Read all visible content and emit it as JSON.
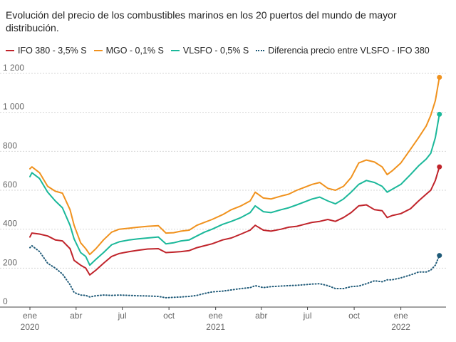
{
  "title": "Evolución del precio de los combustibles marinos en los 20 puertos del mundo de mayor distribución.",
  "chart_data": {
    "type": "line",
    "xlabel": "",
    "ylabel": "",
    "ylim": [
      0,
      1200
    ],
    "y_ticks": [
      0,
      200,
      400,
      600,
      800,
      1000,
      1200
    ],
    "y_tick_labels": [
      "0",
      "200",
      "400",
      "600",
      "800",
      "1 000",
      "1 200"
    ],
    "x_range": [
      "2020-01-01",
      "2022-03-31"
    ],
    "x_ticks": [
      {
        "date": "2020-01-01",
        "label": "ene",
        "year": "2020"
      },
      {
        "date": "2020-04-01",
        "label": "abr",
        "year": ""
      },
      {
        "date": "2020-07-01",
        "label": "jul",
        "year": ""
      },
      {
        "date": "2020-10-01",
        "label": "oct",
        "year": ""
      },
      {
        "date": "2021-01-01",
        "label": "ene",
        "year": "2021"
      },
      {
        "date": "2021-04-01",
        "label": "abr",
        "year": ""
      },
      {
        "date": "2021-07-01",
        "label": "jul",
        "year": ""
      },
      {
        "date": "2021-10-01",
        "label": "oct",
        "year": ""
      },
      {
        "date": "2022-01-01",
        "label": "ene",
        "year": "2022"
      }
    ],
    "grid": true,
    "legend_position": "top",
    "series": [
      {
        "name": "IFO 380 - 3,5% S",
        "color": "#c0242b",
        "style": "solid",
        "points": [
          [
            "2020-01-01",
            360
          ],
          [
            "2020-01-05",
            380
          ],
          [
            "2020-01-20",
            375
          ],
          [
            "2020-02-05",
            365
          ],
          [
            "2020-02-20",
            345
          ],
          [
            "2020-03-05",
            340
          ],
          [
            "2020-03-20",
            300
          ],
          [
            "2020-03-28",
            240
          ],
          [
            "2020-04-10",
            215
          ],
          [
            "2020-04-20",
            200
          ],
          [
            "2020-04-28",
            165
          ],
          [
            "2020-05-10",
            190
          ],
          [
            "2020-05-25",
            225
          ],
          [
            "2020-06-10",
            260
          ],
          [
            "2020-06-25",
            275
          ],
          [
            "2020-07-15",
            285
          ],
          [
            "2020-08-01",
            292
          ],
          [
            "2020-08-20",
            298
          ],
          [
            "2020-09-10",
            300
          ],
          [
            "2020-09-25",
            280
          ],
          [
            "2020-10-10",
            282
          ],
          [
            "2020-10-25",
            285
          ],
          [
            "2020-11-10",
            290
          ],
          [
            "2020-11-25",
            305
          ],
          [
            "2020-12-10",
            315
          ],
          [
            "2020-12-25",
            325
          ],
          [
            "2021-01-15",
            345
          ],
          [
            "2021-02-01",
            355
          ],
          [
            "2021-02-20",
            375
          ],
          [
            "2021-03-10",
            395
          ],
          [
            "2021-03-20",
            420
          ],
          [
            "2021-04-05",
            395
          ],
          [
            "2021-04-20",
            390
          ],
          [
            "2021-05-10",
            400
          ],
          [
            "2021-05-25",
            410
          ],
          [
            "2021-06-10",
            415
          ],
          [
            "2021-06-25",
            425
          ],
          [
            "2021-07-10",
            435
          ],
          [
            "2021-07-25",
            440
          ],
          [
            "2021-08-10",
            450
          ],
          [
            "2021-08-25",
            440
          ],
          [
            "2021-09-10",
            460
          ],
          [
            "2021-09-25",
            485
          ],
          [
            "2021-10-10",
            520
          ],
          [
            "2021-10-25",
            525
          ],
          [
            "2021-11-10",
            500
          ],
          [
            "2021-11-25",
            495
          ],
          [
            "2021-12-05",
            460
          ],
          [
            "2021-12-15",
            470
          ],
          [
            "2022-01-01",
            480
          ],
          [
            "2022-01-20",
            505
          ],
          [
            "2022-02-05",
            545
          ],
          [
            "2022-02-20",
            580
          ],
          [
            "2022-03-01",
            600
          ],
          [
            "2022-03-10",
            650
          ],
          [
            "2022-03-18",
            720
          ]
        ]
      },
      {
        "name": "MGO - 0,1% S",
        "color": "#f0921e",
        "style": "solid",
        "points": [
          [
            "2020-01-01",
            710
          ],
          [
            "2020-01-05",
            720
          ],
          [
            "2020-01-20",
            690
          ],
          [
            "2020-02-05",
            620
          ],
          [
            "2020-02-20",
            595
          ],
          [
            "2020-03-05",
            585
          ],
          [
            "2020-03-20",
            500
          ],
          [
            "2020-03-28",
            420
          ],
          [
            "2020-04-10",
            330
          ],
          [
            "2020-04-20",
            300
          ],
          [
            "2020-04-28",
            270
          ],
          [
            "2020-05-10",
            300
          ],
          [
            "2020-05-25",
            345
          ],
          [
            "2020-06-10",
            385
          ],
          [
            "2020-06-25",
            400
          ],
          [
            "2020-07-15",
            405
          ],
          [
            "2020-08-01",
            410
          ],
          [
            "2020-08-20",
            415
          ],
          [
            "2020-09-10",
            418
          ],
          [
            "2020-09-25",
            380
          ],
          [
            "2020-10-10",
            382
          ],
          [
            "2020-10-25",
            390
          ],
          [
            "2020-11-10",
            395
          ],
          [
            "2020-11-25",
            420
          ],
          [
            "2020-12-10",
            435
          ],
          [
            "2020-12-25",
            450
          ],
          [
            "2021-01-15",
            475
          ],
          [
            "2021-02-01",
            500
          ],
          [
            "2021-02-20",
            520
          ],
          [
            "2021-03-10",
            545
          ],
          [
            "2021-03-20",
            590
          ],
          [
            "2021-04-05",
            560
          ],
          [
            "2021-04-20",
            555
          ],
          [
            "2021-05-10",
            570
          ],
          [
            "2021-05-25",
            580
          ],
          [
            "2021-06-10",
            600
          ],
          [
            "2021-06-25",
            615
          ],
          [
            "2021-07-10",
            630
          ],
          [
            "2021-07-25",
            640
          ],
          [
            "2021-08-10",
            610
          ],
          [
            "2021-08-25",
            600
          ],
          [
            "2021-09-10",
            620
          ],
          [
            "2021-09-25",
            665
          ],
          [
            "2021-10-10",
            740
          ],
          [
            "2021-10-25",
            755
          ],
          [
            "2021-11-10",
            745
          ],
          [
            "2021-11-25",
            720
          ],
          [
            "2021-12-05",
            680
          ],
          [
            "2021-12-15",
            700
          ],
          [
            "2022-01-01",
            740
          ],
          [
            "2022-01-20",
            810
          ],
          [
            "2022-02-05",
            870
          ],
          [
            "2022-02-20",
            930
          ],
          [
            "2022-03-01",
            985
          ],
          [
            "2022-03-10",
            1060
          ],
          [
            "2022-03-18",
            1180
          ]
        ]
      },
      {
        "name": "VLSFO - 0,5% S",
        "color": "#1bb89a",
        "style": "solid",
        "points": [
          [
            "2020-01-01",
            670
          ],
          [
            "2020-01-05",
            690
          ],
          [
            "2020-01-20",
            660
          ],
          [
            "2020-02-05",
            590
          ],
          [
            "2020-02-20",
            545
          ],
          [
            "2020-03-05",
            510
          ],
          [
            "2020-03-20",
            420
          ],
          [
            "2020-03-28",
            350
          ],
          [
            "2020-04-10",
            280
          ],
          [
            "2020-04-20",
            260
          ],
          [
            "2020-04-28",
            215
          ],
          [
            "2020-05-10",
            245
          ],
          [
            "2020-05-25",
            280
          ],
          [
            "2020-06-10",
            320
          ],
          [
            "2020-06-25",
            335
          ],
          [
            "2020-07-15",
            345
          ],
          [
            "2020-08-01",
            350
          ],
          [
            "2020-08-20",
            355
          ],
          [
            "2020-09-10",
            360
          ],
          [
            "2020-09-25",
            325
          ],
          [
            "2020-10-10",
            330
          ],
          [
            "2020-10-25",
            340
          ],
          [
            "2020-11-10",
            345
          ],
          [
            "2020-11-25",
            365
          ],
          [
            "2020-12-10",
            385
          ],
          [
            "2020-12-25",
            400
          ],
          [
            "2021-01-15",
            425
          ],
          [
            "2021-02-01",
            440
          ],
          [
            "2021-02-20",
            460
          ],
          [
            "2021-03-10",
            485
          ],
          [
            "2021-03-20",
            520
          ],
          [
            "2021-04-05",
            490
          ],
          [
            "2021-04-20",
            485
          ],
          [
            "2021-05-10",
            500
          ],
          [
            "2021-05-25",
            510
          ],
          [
            "2021-06-10",
            525
          ],
          [
            "2021-06-25",
            540
          ],
          [
            "2021-07-10",
            555
          ],
          [
            "2021-07-25",
            565
          ],
          [
            "2021-08-10",
            545
          ],
          [
            "2021-08-25",
            530
          ],
          [
            "2021-09-10",
            555
          ],
          [
            "2021-09-25",
            590
          ],
          [
            "2021-10-10",
            630
          ],
          [
            "2021-10-25",
            650
          ],
          [
            "2021-11-10",
            640
          ],
          [
            "2021-11-25",
            620
          ],
          [
            "2021-12-05",
            590
          ],
          [
            "2021-12-15",
            605
          ],
          [
            "2022-01-01",
            630
          ],
          [
            "2022-01-20",
            680
          ],
          [
            "2022-02-05",
            725
          ],
          [
            "2022-02-20",
            760
          ],
          [
            "2022-03-01",
            790
          ],
          [
            "2022-03-10",
            870
          ],
          [
            "2022-03-18",
            990
          ]
        ]
      },
      {
        "name": "Diferencia precio entre VLSFO - IFO 380",
        "color": "#1f5a78",
        "style": "dotted",
        "points": [
          [
            "2020-01-01",
            305
          ],
          [
            "2020-01-05",
            315
          ],
          [
            "2020-01-20",
            285
          ],
          [
            "2020-02-05",
            225
          ],
          [
            "2020-02-20",
            200
          ],
          [
            "2020-03-05",
            170
          ],
          [
            "2020-03-20",
            115
          ],
          [
            "2020-03-28",
            75
          ],
          [
            "2020-04-10",
            62
          ],
          [
            "2020-04-20",
            60
          ],
          [
            "2020-04-28",
            52
          ],
          [
            "2020-05-10",
            58
          ],
          [
            "2020-05-25",
            62
          ],
          [
            "2020-06-10",
            60
          ],
          [
            "2020-06-25",
            62
          ],
          [
            "2020-07-15",
            60
          ],
          [
            "2020-08-01",
            58
          ],
          [
            "2020-08-20",
            57
          ],
          [
            "2020-09-10",
            55
          ],
          [
            "2020-09-25",
            48
          ],
          [
            "2020-10-10",
            50
          ],
          [
            "2020-10-25",
            52
          ],
          [
            "2020-11-10",
            55
          ],
          [
            "2020-11-25",
            60
          ],
          [
            "2020-12-10",
            70
          ],
          [
            "2020-12-25",
            78
          ],
          [
            "2021-01-15",
            82
          ],
          [
            "2021-02-01",
            88
          ],
          [
            "2021-02-20",
            95
          ],
          [
            "2021-03-10",
            100
          ],
          [
            "2021-03-20",
            110
          ],
          [
            "2021-04-05",
            100
          ],
          [
            "2021-04-20",
            105
          ],
          [
            "2021-05-10",
            108
          ],
          [
            "2021-05-25",
            110
          ],
          [
            "2021-06-10",
            112
          ],
          [
            "2021-06-25",
            115
          ],
          [
            "2021-07-10",
            118
          ],
          [
            "2021-07-25",
            120
          ],
          [
            "2021-08-10",
            110
          ],
          [
            "2021-08-25",
            95
          ],
          [
            "2021-09-10",
            95
          ],
          [
            "2021-09-25",
            105
          ],
          [
            "2021-10-10",
            108
          ],
          [
            "2021-10-25",
            120
          ],
          [
            "2021-11-10",
            135
          ],
          [
            "2021-11-25",
            130
          ],
          [
            "2021-12-05",
            140
          ],
          [
            "2021-12-15",
            140
          ],
          [
            "2022-01-01",
            150
          ],
          [
            "2022-01-20",
            165
          ],
          [
            "2022-02-05",
            180
          ],
          [
            "2022-02-20",
            180
          ],
          [
            "2022-03-01",
            190
          ],
          [
            "2022-03-10",
            215
          ],
          [
            "2022-03-18",
            265
          ]
        ]
      }
    ]
  }
}
